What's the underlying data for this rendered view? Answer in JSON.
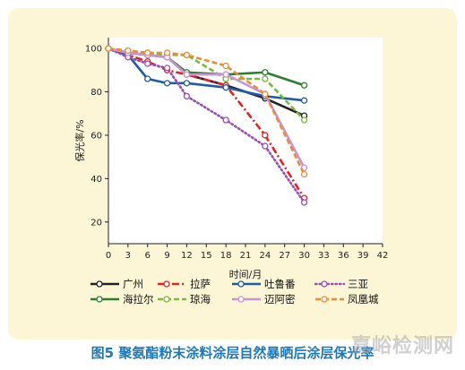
{
  "caption": "图5 聚氨酯粉末涂料涂层自然暴晒后涂层保光率",
  "watermark": "嘉峪检测网",
  "chart_data": {
    "type": "line",
    "xlabel": "时间/月",
    "ylabel": "保光率/%",
    "xlim": [
      0,
      42
    ],
    "ylim": [
      10,
      105
    ],
    "xticks": [
      0,
      3,
      6,
      9,
      12,
      15,
      18,
      21,
      24,
      27,
      30,
      33,
      36,
      39,
      42
    ],
    "yticks": [
      20,
      40,
      60,
      80,
      100
    ],
    "series": [
      {
        "name": "广州",
        "color": "#222222",
        "dash": "solid",
        "x": [
          0,
          3,
          6,
          9,
          12,
          18,
          24,
          30
        ],
        "values": [
          100,
          98,
          97,
          96,
          88,
          83,
          77,
          69
        ]
      },
      {
        "name": "拉萨",
        "color": "#e02424",
        "dash": "dashdot",
        "x": [
          0,
          3,
          6,
          9,
          12,
          18,
          24,
          30
        ],
        "values": [
          100,
          97,
          94,
          90,
          88,
          83,
          60,
          31
        ]
      },
      {
        "name": "吐鲁番",
        "color": "#1f5ba8",
        "dash": "solid",
        "x": [
          0,
          3,
          6,
          9,
          12,
          18,
          24,
          30
        ],
        "values": [
          100,
          97,
          86,
          84,
          84,
          82,
          78,
          76
        ]
      },
      {
        "name": "三亚",
        "color": "#9a4fb5",
        "dash": "dotted",
        "x": [
          0,
          3,
          6,
          9,
          12,
          18,
          24,
          30
        ],
        "values": [
          100,
          96,
          93,
          91,
          78,
          67,
          55,
          29
        ]
      },
      {
        "name": "海拉尔",
        "color": "#2e7d32",
        "dash": "solid",
        "x": [
          0,
          3,
          6,
          9,
          12,
          18,
          24,
          30
        ],
        "values": [
          100,
          98,
          97,
          96,
          89,
          88,
          89,
          83
        ]
      },
      {
        "name": "琼海",
        "color": "#7ab83e",
        "dash": "dashed",
        "x": [
          0,
          3,
          6,
          9,
          12,
          18,
          24,
          30
        ],
        "values": [
          100,
          99,
          98,
          97,
          97,
          86,
          86,
          67
        ]
      },
      {
        "name": "迈阿密",
        "color": "#c795d3",
        "dash": "solid",
        "x": [
          0,
          3,
          6,
          9,
          12,
          18,
          24,
          30
        ],
        "values": [
          100,
          98,
          97,
          96,
          88,
          88,
          79,
          45
        ]
      },
      {
        "name": "凤凰城",
        "color": "#f08a34",
        "dash": "dashed",
        "x": [
          0,
          3,
          6,
          9,
          12,
          18,
          24,
          30
        ],
        "values": [
          100,
          99,
          98,
          98,
          97,
          92,
          79,
          42
        ]
      }
    ]
  }
}
